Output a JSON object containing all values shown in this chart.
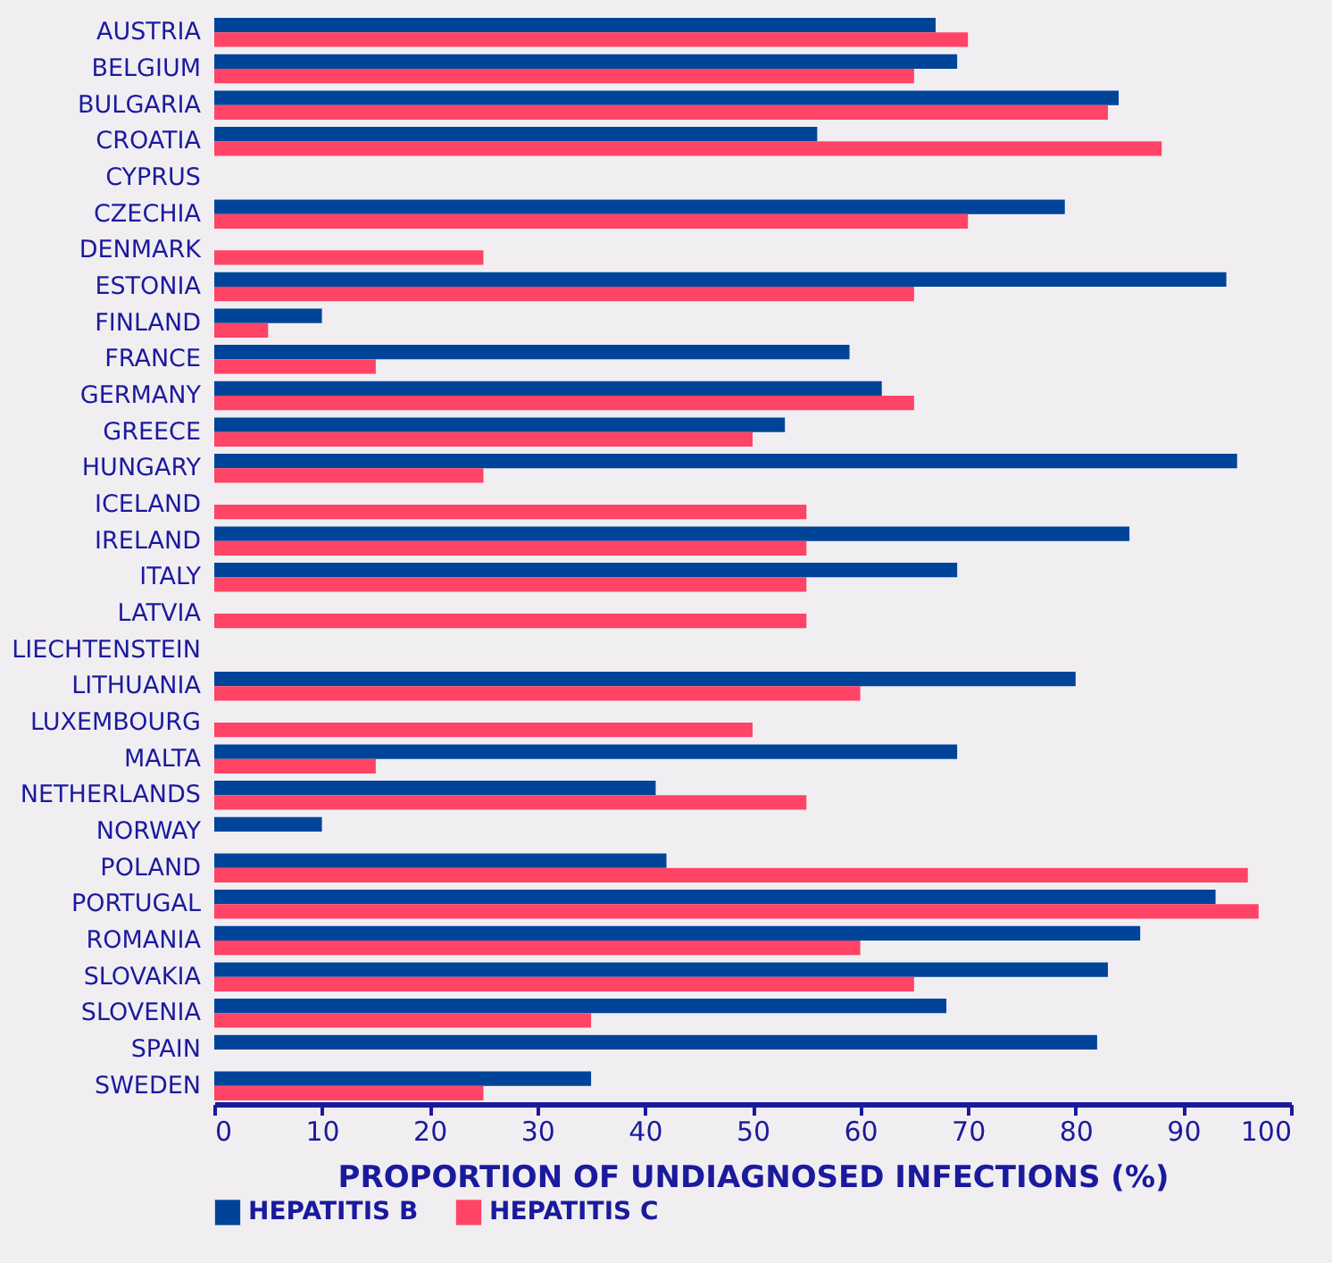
{
  "chart_data": {
    "type": "bar",
    "orientation": "horizontal",
    "xlabel": "PROPORTION OF UNDIAGNOSED INFECTIONS (%)",
    "categories": [
      "AUSTRIA",
      "BELGIUM",
      "BULGARIA",
      "CROATIA",
      "CYPRUS",
      "CZECHIA",
      "DENMARK",
      "ESTONIA",
      "FINLAND",
      "FRANCE",
      "GERMANY",
      "GREECE",
      "HUNGARY",
      "ICELAND",
      "IRELAND",
      "ITALY",
      "LATVIA",
      "LIECHTENSTEIN",
      "LITHUANIA",
      "LUXEMBOURG",
      "MALTA",
      "NETHERLANDS",
      "NORWAY",
      "POLAND",
      "PORTUGAL",
      "ROMANIA",
      "SLOVAKIA",
      "SLOVENIA",
      "SPAIN",
      "SWEDEN"
    ],
    "series": [
      {
        "name": "HEPATITIS B",
        "color": "#00449a",
        "values": [
          67,
          69,
          84,
          56,
          null,
          79,
          null,
          94,
          10,
          59,
          62,
          53,
          95,
          null,
          85,
          69,
          null,
          null,
          80,
          null,
          69,
          41,
          10,
          42,
          93,
          86,
          83,
          68,
          82,
          35
        ]
      },
      {
        "name": "HEPATITIS C",
        "color": "#ff4466",
        "values": [
          70,
          65,
          83,
          88,
          null,
          70,
          25,
          65,
          5,
          15,
          65,
          50,
          25,
          55,
          55,
          55,
          55,
          null,
          60,
          50,
          15,
          55,
          null,
          96,
          97,
          60,
          65,
          35,
          null,
          25
        ]
      }
    ],
    "xlim": [
      0,
      100
    ],
    "xticks": [
      0,
      10,
      20,
      30,
      40,
      50,
      60,
      70,
      80,
      90,
      100
    ],
    "grid": false,
    "legend": "bottom"
  }
}
